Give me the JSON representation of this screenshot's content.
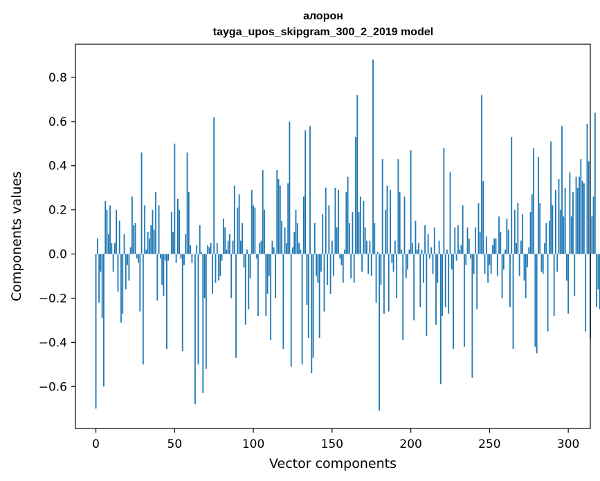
{
  "chart_data": {
    "type": "bar",
    "title": "алорон",
    "subtitle": "tayga_upos_skipgram_300_2_2019 model",
    "xlabel": "Vector components",
    "ylabel": "Components values",
    "xlim": [
      -13,
      314
    ],
    "ylim": [
      -0.79,
      0.95
    ],
    "xticks": [
      0,
      50,
      100,
      150,
      200,
      250,
      300
    ],
    "xtick_labels": [
      "0",
      "50",
      "100",
      "150",
      "200",
      "250",
      "300"
    ],
    "yticks": [
      -0.6,
      -0.4,
      -0.2,
      0.0,
      0.2,
      0.4,
      0.6,
      0.8
    ],
    "ytick_labels": [
      "−0.6",
      "−0.4",
      "−0.2",
      "0.0",
      "0.2",
      "0.4",
      "0.6",
      "0.8"
    ],
    "bar_color": "#1f77b4",
    "grid": false,
    "values": [
      -0.7,
      0.07,
      -0.22,
      -0.08,
      -0.29,
      -0.6,
      0.24,
      0.2,
      0.09,
      0.22,
      0.05,
      -0.08,
      0.05,
      0.2,
      -0.17,
      0.15,
      -0.31,
      -0.27,
      0.09,
      -0.16,
      -0.05,
      -0.12,
      0.03,
      0.26,
      0.13,
      0.14,
      -0.02,
      -0.04,
      -0.26,
      0.46,
      -0.5,
      0.22,
      0.02,
      0.1,
      0.07,
      0.13,
      0.2,
      0.11,
      0.28,
      -0.21,
      0.22,
      -0.02,
      -0.14,
      -0.19,
      -0.03,
      -0.43,
      -0.03,
      0.0,
      0.19,
      0.1,
      0.5,
      -0.04,
      0.25,
      0.2,
      -0.02,
      -0.44,
      -0.05,
      0.09,
      0.46,
      0.28,
      0.04,
      -0.04,
      0.0,
      -0.68,
      0.04,
      -0.5,
      0.13,
      0.01,
      -0.63,
      -0.2,
      -0.52,
      0.04,
      0.03,
      0.05,
      -0.18,
      0.62,
      -0.13,
      0.05,
      -0.12,
      -0.1,
      -0.03,
      0.16,
      0.12,
      0.02,
      0.06,
      0.09,
      -0.2,
      0.06,
      0.31,
      -0.47,
      0.21,
      0.27,
      0.06,
      0.14,
      -0.06,
      -0.32,
      0.02,
      -0.25,
      -0.11,
      0.29,
      0.22,
      0.21,
      -0.02,
      -0.28,
      0.05,
      0.06,
      0.38,
      0.2,
      -0.28,
      -0.18,
      -0.1,
      -0.39,
      0.06,
      0.03,
      -0.2,
      0.38,
      0.34,
      0.31,
      0.15,
      -0.43,
      0.12,
      0.05,
      0.32,
      0.6,
      -0.51,
      0.03,
      0.1,
      0.2,
      0.14,
      0.05,
      0.02,
      -0.5,
      0.26,
      0.56,
      -0.23,
      -0.38,
      0.58,
      -0.54,
      -0.47,
      0.14,
      -0.1,
      -0.13,
      -0.38,
      -0.08,
      0.18,
      -0.26,
      0.3,
      -0.14,
      0.22,
      -0.18,
      0.06,
      -0.1,
      0.3,
      0.12,
      0.29,
      -0.02,
      -0.05,
      -0.13,
      0.02,
      0.28,
      0.35,
      0.14,
      -0.11,
      0.19,
      -0.13,
      0.53,
      0.72,
      0.19,
      0.26,
      -0.08,
      0.24,
      0.12,
      0.06,
      -0.09,
      0.06,
      -0.1,
      0.88,
      0.14,
      -0.22,
      0.01,
      -0.71,
      -0.14,
      0.43,
      -0.27,
      0.2,
      0.31,
      -0.26,
      0.29,
      -0.04,
      -0.08,
      0.06,
      -0.2,
      0.43,
      0.28,
      0.02,
      -0.39,
      0.26,
      -0.11,
      -0.07,
      0.02,
      0.47,
      0.05,
      -0.3,
      0.15,
      0.02,
      0.05,
      -0.24,
      0.02,
      -0.13,
      0.13,
      -0.37,
      0.09,
      -0.02,
      0.03,
      -0.09,
      0.12,
      -0.32,
      -0.13,
      0.06,
      -0.59,
      -0.28,
      0.48,
      -0.24,
      0.02,
      -0.27,
      0.37,
      -0.07,
      -0.43,
      0.12,
      -0.03,
      0.13,
      0.02,
      0.04,
      0.22,
      -0.42,
      -0.05,
      0.12,
      0.07,
      -0.02,
      -0.56,
      -0.09,
      0.12,
      -0.25,
      0.23,
      0.1,
      0.72,
      0.33,
      -0.09,
      0.08,
      -0.13,
      -0.05,
      -0.09,
      0.04,
      0.07,
      0.07,
      -0.1,
      0.17,
      0.1,
      -0.2,
      -0.07,
      0.02,
      0.16,
      0.11,
      -0.24,
      0.53,
      -0.43,
      0.2,
      0.05,
      0.23,
      -0.1,
      0.06,
      0.18,
      -0.12,
      -0.2,
      -0.06,
      0.03,
      0.19,
      0.27,
      0.48,
      -0.42,
      -0.45,
      0.44,
      0.23,
      -0.08,
      -0.09,
      0.05,
      0.14,
      -0.35,
      0.15,
      0.51,
      0.22,
      -0.28,
      0.29,
      -0.08,
      0.34,
      0.2,
      0.58,
      0.17,
      0.3,
      -0.12,
      -0.27,
      0.37,
      0.17,
      0.28,
      -0.19,
      0.35,
      0.3,
      0.35,
      0.43,
      0.33,
      0.32,
      -0.35,
      0.59,
      0.42,
      -0.38,
      0.17,
      0.26,
      0.64,
      -0.24,
      -0.16,
      -0.25
    ]
  }
}
